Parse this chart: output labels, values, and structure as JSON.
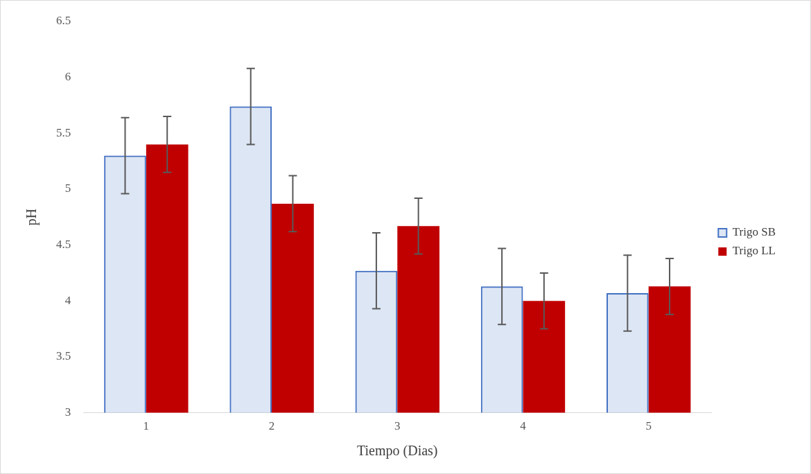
{
  "chart_data": {
    "type": "bar",
    "xlabel": "Tiempo (Dias)",
    "ylabel": "pH",
    "categories": [
      "1",
      "2",
      "3",
      "4",
      "5"
    ],
    "series": [
      {
        "name": "Trigo SB",
        "color": "#4472c4",
        "values": [
          5.3,
          5.74,
          4.27,
          4.13,
          4.07
        ],
        "errors": [
          0.34,
          0.34,
          0.34,
          0.34,
          0.34
        ]
      },
      {
        "name": "Trigo LL",
        "color": "#c00000",
        "values": [
          5.4,
          4.87,
          4.67,
          4.0,
          4.13
        ],
        "errors": [
          0.25,
          0.25,
          0.25,
          0.25,
          0.25
        ]
      }
    ],
    "ylim": [
      3,
      6.5
    ],
    "yticks": [
      3,
      3.5,
      4,
      4.5,
      5,
      5.5,
      6,
      6.5
    ],
    "grid": false,
    "legend": "right"
  }
}
